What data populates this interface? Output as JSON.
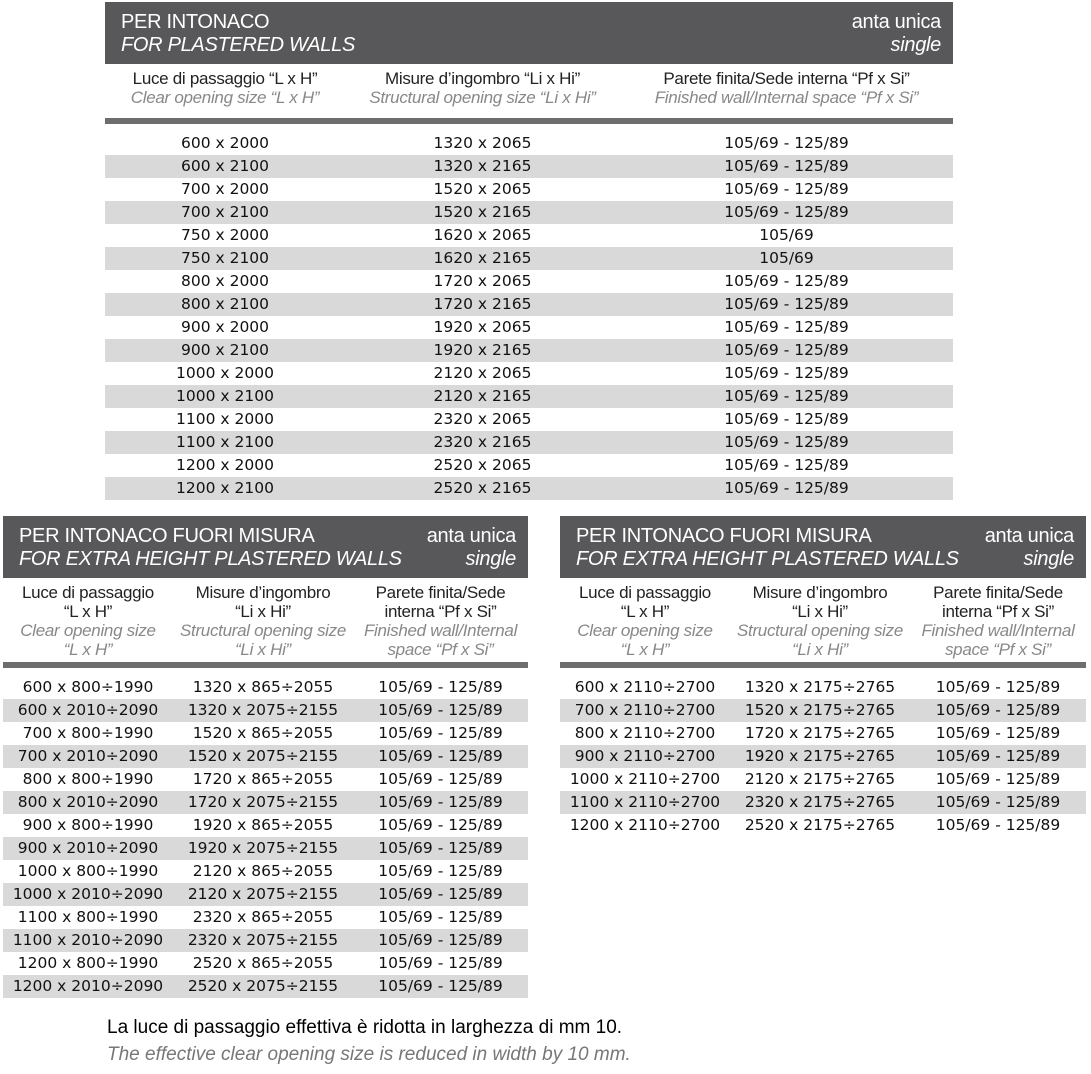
{
  "tables": [
    {
      "title_it": "PER INTONACO",
      "title_en": "FOR PLASTERED WALLS",
      "type_it": "anta unica",
      "type_en": "single",
      "columns": [
        {
          "it": [
            "Luce di passaggio “L x H”"
          ],
          "en": [
            "Clear opening size “L x H”"
          ]
        },
        {
          "it": [
            "Misure d’ingombro “Li x Hi”"
          ],
          "en": [
            "Structural opening size “Li x Hi”"
          ]
        },
        {
          "it": [
            "Parete finita/Sede interna “Pf x Si”"
          ],
          "en": [
            "Finished wall/Internal space “Pf x Si”"
          ]
        }
      ],
      "rows": [
        [
          "600 x 2000",
          "1320 x 2065",
          "105/69 - 125/89"
        ],
        [
          "600 x 2100",
          "1320 x 2165",
          "105/69 - 125/89"
        ],
        [
          "700 x 2000",
          "1520 x 2065",
          "105/69 - 125/89"
        ],
        [
          "700 x 2100",
          "1520 x 2165",
          "105/69 - 125/89"
        ],
        [
          "750 x 2000",
          "1620 x 2065",
          "105/69"
        ],
        [
          "750 x 2100",
          "1620 x 2165",
          "105/69"
        ],
        [
          "800 x 2000",
          "1720 x 2065",
          "105/69 - 125/89"
        ],
        [
          "800 x 2100",
          "1720 x 2165",
          "105/69 - 125/89"
        ],
        [
          "900 x 2000",
          "1920 x 2065",
          "105/69 - 125/89"
        ],
        [
          "900 x 2100",
          "1920 x 2165",
          "105/69 - 125/89"
        ],
        [
          "1000 x 2000",
          "2120 x 2065",
          "105/69 - 125/89"
        ],
        [
          "1000 x 2100",
          "2120 x 2165",
          "105/69 - 125/89"
        ],
        [
          "1100 x 2000",
          "2320 x 2065",
          "105/69 - 125/89"
        ],
        [
          "1100 x 2100",
          "2320 x 2165",
          "105/69 - 125/89"
        ],
        [
          "1200 x 2000",
          "2520 x 2065",
          "105/69 - 125/89"
        ],
        [
          "1200 x 2100",
          "2520 x 2165",
          "105/69 - 125/89"
        ]
      ]
    },
    {
      "title_it": "PER INTONACO FUORI MISURA",
      "title_en": "FOR EXTRA HEIGHT PLASTERED WALLS",
      "type_it": "anta unica",
      "type_en": "single",
      "columns": [
        {
          "it": [
            "Luce di passaggio",
            "“L x H”"
          ],
          "en": [
            "Clear opening size",
            "“L x H”"
          ]
        },
        {
          "it": [
            "Misure d’ingombro",
            "“Li x Hi”"
          ],
          "en": [
            "Structural opening size",
            "“Li x Hi”"
          ]
        },
        {
          "it": [
            "Parete finita/Sede",
            "interna “Pf x Si”"
          ],
          "en": [
            "Finished wall/Internal",
            "space “Pf x Si”"
          ]
        }
      ],
      "rows": [
        [
          "600 x 800÷1990",
          "1320 x 865÷2055",
          "105/69 - 125/89"
        ],
        [
          "600 x 2010÷2090",
          "1320 x 2075÷2155",
          "105/69 - 125/89"
        ],
        [
          "700 x 800÷1990",
          "1520 x 865÷2055",
          "105/69 - 125/89"
        ],
        [
          "700 x 2010÷2090",
          "1520 x 2075÷2155",
          "105/69 - 125/89"
        ],
        [
          "800 x 800÷1990",
          "1720 x 865÷2055",
          "105/69 - 125/89"
        ],
        [
          "800 x 2010÷2090",
          "1720 x 2075÷2155",
          "105/69 - 125/89"
        ],
        [
          "900 x 800÷1990",
          "1920 x 865÷2055",
          "105/69 - 125/89"
        ],
        [
          "900 x 2010÷2090",
          "1920 x 2075÷2155",
          "105/69 - 125/89"
        ],
        [
          "1000 x 800÷1990",
          "2120 x 865÷2055",
          "105/69 - 125/89"
        ],
        [
          "1000 x 2010÷2090",
          "2120 x 2075÷2155",
          "105/69 - 125/89"
        ],
        [
          "1100 x 800÷1990",
          "2320 x 865÷2055",
          "105/69 - 125/89"
        ],
        [
          "1100 x 2010÷2090",
          "2320 x 2075÷2155",
          "105/69 - 125/89"
        ],
        [
          "1200 x 800÷1990",
          "2520 x 865÷2055",
          "105/69 - 125/89"
        ],
        [
          "1200 x 2010÷2090",
          "2520 x 2075÷2155",
          "105/69 - 125/89"
        ]
      ]
    },
    {
      "title_it": "PER INTONACO FUORI MISURA",
      "title_en": "FOR EXTRA HEIGHT PLASTERED WALLS",
      "type_it": "anta unica",
      "type_en": "single",
      "columns": [
        {
          "it": [
            "Luce di passaggio",
            "“L x H”"
          ],
          "en": [
            "Clear opening size",
            "“L x H”"
          ]
        },
        {
          "it": [
            "Misure d’ingombro",
            "“Li x Hi”"
          ],
          "en": [
            "Structural opening size",
            "“Li x Hi”"
          ]
        },
        {
          "it": [
            "Parete finita/Sede",
            "interna “Pf x Si”"
          ],
          "en": [
            "Finished wall/Internal",
            "space “Pf x Si”"
          ]
        }
      ],
      "rows": [
        [
          "600 x 2110÷2700",
          "1320 x 2175÷2765",
          "105/69 - 125/89"
        ],
        [
          "700 x 2110÷2700",
          "1520 x 2175÷2765",
          "105/69 - 125/89"
        ],
        [
          "800 x 2110÷2700",
          "1720 x 2175÷2765",
          "105/69 - 125/89"
        ],
        [
          "900 x 2110÷2700",
          "1920 x 2175÷2765",
          "105/69 - 125/89"
        ],
        [
          "1000 x 2110÷2700",
          "2120 x 2175÷2765",
          "105/69 - 125/89"
        ],
        [
          "1100 x 2110÷2700",
          "2320 x 2175÷2765",
          "105/69 - 125/89"
        ],
        [
          "1200 x 2110÷2700",
          "2520 x 2175÷2765",
          "105/69 - 125/89"
        ]
      ]
    }
  ],
  "footer": {
    "note_it": "La luce di passaggio effettiva è ridotta in larghezza di mm 10.",
    "note_en": "The effective clear opening size is reduced in width by 10 mm."
  },
  "colors": {
    "title_bar": "#58585a",
    "stripe": "#d9d9d9",
    "rule": "#6d6d6d"
  }
}
